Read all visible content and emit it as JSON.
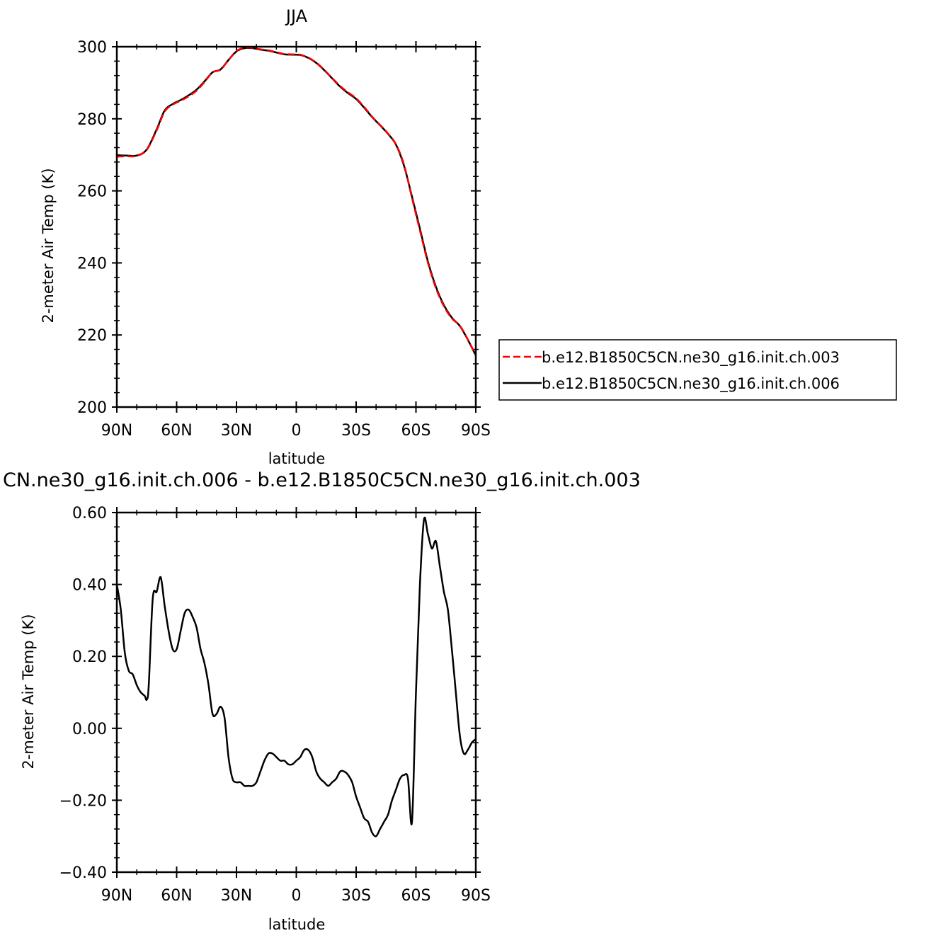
{
  "chart_data": [
    {
      "type": "line",
      "title": "JJA",
      "xlabel": "latitude",
      "ylabel": "2-meter Air Temp (K)",
      "x_ticks": [
        "90N",
        "60N",
        "30N",
        "0",
        "30S",
        "60S",
        "90S"
      ],
      "xlim": [
        90,
        -90
      ],
      "ylim": [
        200,
        300
      ],
      "y_ticks": [
        "200",
        "220",
        "240",
        "260",
        "280",
        "300"
      ],
      "grid": false,
      "legend": {
        "placement": "right",
        "entries": [
          "b.e12.B1850C5CN.ne30_g16.init.ch.003",
          "b.e12.B1850C5CN.ne30_g16.init.ch.006"
        ]
      },
      "colors": {
        "series_003": "#ff0000",
        "series_006": "#000000"
      },
      "x": [
        90,
        85,
        80,
        75,
        70,
        66,
        62,
        58,
        54,
        50,
        46,
        42,
        38,
        34,
        30,
        26,
        22,
        18,
        14,
        10,
        6,
        2,
        -2,
        -6,
        -10,
        -14,
        -18,
        -22,
        -26,
        -30,
        -34,
        -38,
        -42,
        -46,
        -50,
        -54,
        -58,
        -62,
        -66,
        -70,
        -74,
        -78,
        -82,
        -86,
        -90
      ],
      "series": [
        {
          "name": "b.e12.B1850C5CN.ne30_g16.init.ch.003",
          "style": "dashed",
          "values": [
            269.5,
            269.6,
            269.7,
            271.4,
            276.8,
            282.0,
            283.9,
            285.0,
            286.2,
            287.8,
            290.2,
            292.9,
            293.6,
            296.3,
            298.8,
            299.7,
            299.7,
            299.3,
            299.0,
            298.5,
            298.0,
            297.9,
            297.8,
            297.0,
            295.6,
            293.6,
            291.3,
            289.1,
            287.3,
            285.7,
            283.3,
            280.6,
            278.3,
            275.9,
            272.9,
            267.3,
            258.0,
            249.0,
            240.0,
            233.0,
            228.0,
            224.6,
            222.6,
            218.8,
            214.4
          ]
        },
        {
          "name": "b.e12.B1850C5CN.ne30_g16.init.ch.006",
          "style": "solid",
          "values": [
            269.9,
            269.8,
            269.8,
            271.5,
            277.1,
            282.3,
            284.1,
            285.2,
            286.5,
            288.1,
            290.4,
            292.9,
            293.7,
            296.3,
            298.7,
            299.6,
            299.6,
            299.2,
            298.9,
            298.4,
            297.9,
            297.8,
            297.7,
            296.9,
            295.5,
            293.5,
            291.2,
            288.9,
            287.1,
            285.5,
            283.1,
            280.5,
            278.2,
            275.8,
            272.8,
            267.0,
            258.4,
            249.5,
            240.4,
            233.4,
            228.3,
            224.8,
            222.5,
            218.7,
            214.3
          ]
        }
      ]
    },
    {
      "type": "line",
      "title": "CN.ne30_g16.init.ch.006 - b.e12.B1850C5CN.ne30_g16.init.ch.003",
      "xlabel": "latitude",
      "ylabel": "2-meter Air Temp (K)",
      "x_ticks": [
        "90N",
        "60N",
        "30N",
        "0",
        "30S",
        "60S",
        "90S"
      ],
      "xlim": [
        90,
        -90
      ],
      "ylim": [
        -0.4,
        0.6
      ],
      "y_ticks": [
        "-0.40",
        "-0.20",
        "0.00",
        "0.20",
        "0.40",
        "0.60"
      ],
      "grid": false,
      "series": [
        {
          "x": [
            90,
            88,
            86,
            84,
            82,
            80,
            78,
            76,
            75,
            74,
            72,
            70,
            68,
            66,
            64,
            62,
            60,
            58,
            56,
            54,
            52,
            50,
            48,
            46,
            44,
            42,
            40,
            38,
            36,
            34,
            32,
            30,
            28,
            26,
            24,
            22,
            20,
            18,
            16,
            14,
            12,
            10,
            8,
            6,
            4,
            2,
            0,
            -2,
            -4,
            -6,
            -8,
            -10,
            -12,
            -14,
            -16,
            -18,
            -20,
            -22,
            -24,
            -26,
            -28,
            -30,
            -32,
            -34,
            -36,
            -38,
            -40,
            -42,
            -44,
            -46,
            -48,
            -50,
            -52,
            -54,
            -56,
            -58,
            -60,
            -62,
            -64,
            -66,
            -68,
            -70,
            -72,
            -74,
            -76,
            -78,
            -80,
            -82,
            -84,
            -86,
            -88,
            -90
          ],
          "values": [
            0.4,
            0.33,
            0.21,
            0.16,
            0.15,
            0.12,
            0.1,
            0.09,
            0.08,
            0.12,
            0.36,
            0.38,
            0.42,
            0.34,
            0.27,
            0.22,
            0.22,
            0.27,
            0.32,
            0.33,
            0.31,
            0.28,
            0.22,
            0.18,
            0.12,
            0.04,
            0.04,
            0.06,
            0.03,
            -0.08,
            -0.14,
            -0.15,
            -0.15,
            -0.16,
            -0.16,
            -0.16,
            -0.15,
            -0.12,
            -0.09,
            -0.07,
            -0.07,
            -0.08,
            -0.09,
            -0.09,
            -0.1,
            -0.1,
            -0.09,
            -0.08,
            -0.06,
            -0.06,
            -0.08,
            -0.12,
            -0.14,
            -0.15,
            -0.16,
            -0.15,
            -0.14,
            -0.12,
            -0.12,
            -0.13,
            -0.15,
            -0.19,
            -0.22,
            -0.25,
            -0.26,
            -0.29,
            -0.3,
            -0.28,
            -0.26,
            -0.24,
            -0.2,
            -0.17,
            -0.14,
            -0.13,
            -0.14,
            -0.26,
            0.1,
            0.4,
            0.58,
            0.54,
            0.5,
            0.52,
            0.45,
            0.38,
            0.33,
            0.22,
            0.1,
            -0.02,
            -0.07,
            -0.06,
            -0.04,
            -0.03
          ]
        }
      ]
    }
  ]
}
